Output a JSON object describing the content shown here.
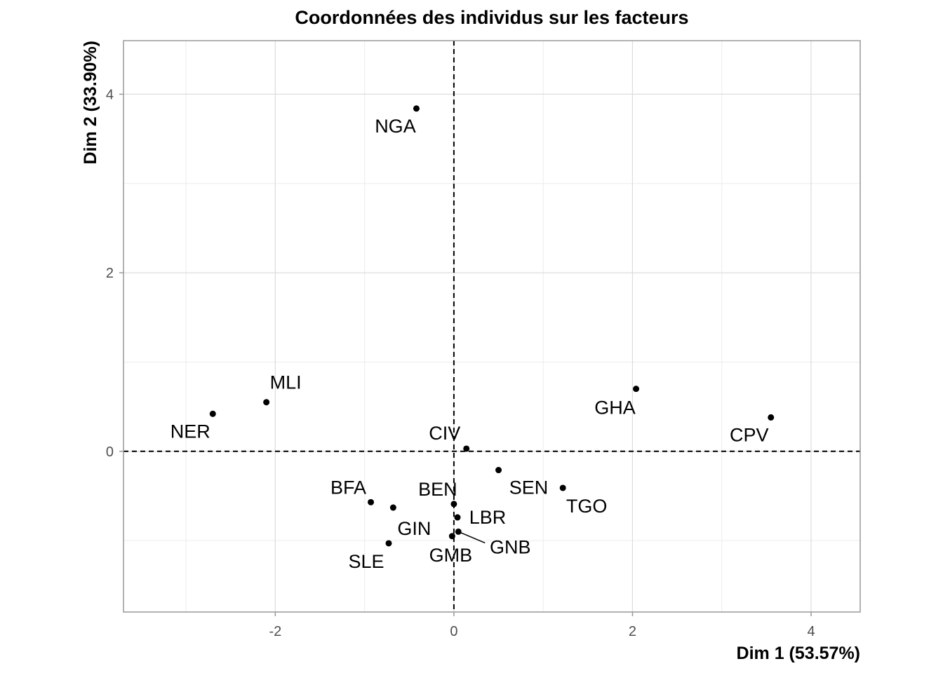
{
  "chart_data": {
    "type": "scatter",
    "title": "Coordonnées des individus sur les facteurs",
    "xlabel": "Dim 1 (53.57%)",
    "ylabel": "Dim 2 (33.90%)",
    "xlim": [
      -3.7,
      4.55
    ],
    "ylim": [
      -1.8,
      4.6
    ],
    "x_ticks": [
      -2,
      0,
      2,
      4
    ],
    "y_ticks": [
      0,
      2,
      4
    ],
    "grid": true,
    "reference_lines": {
      "x": 0,
      "y": 0,
      "style": "dashed"
    },
    "points": [
      {
        "label": "NGA",
        "x": -0.42,
        "y": 3.84
      },
      {
        "label": "MLI",
        "x": -2.1,
        "y": 0.55
      },
      {
        "label": "NER",
        "x": -2.7,
        "y": 0.42
      },
      {
        "label": "GHA",
        "x": 2.04,
        "y": 0.7
      },
      {
        "label": "CPV",
        "x": 3.55,
        "y": 0.38
      },
      {
        "label": "CIV",
        "x": 0.14,
        "y": 0.03
      },
      {
        "label": "SEN",
        "x": 0.5,
        "y": -0.21
      },
      {
        "label": "TGO",
        "x": 1.22,
        "y": -0.41
      },
      {
        "label": "BFA",
        "x": -0.93,
        "y": -0.57
      },
      {
        "label": "GIN",
        "x": -0.68,
        "y": -0.63
      },
      {
        "label": "BEN",
        "x": 0.0,
        "y": -0.59
      },
      {
        "label": "LBR",
        "x": 0.04,
        "y": -0.74
      },
      {
        "label": "GNB",
        "x": 0.05,
        "y": -0.9
      },
      {
        "label": "GMB",
        "x": -0.02,
        "y": -0.95
      },
      {
        "label": "SLE",
        "x": -0.73,
        "y": -1.03
      }
    ]
  }
}
